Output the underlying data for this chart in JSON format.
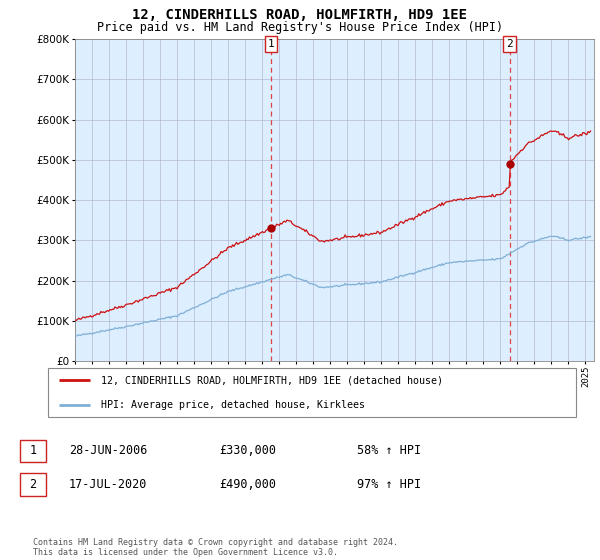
{
  "title": "12, CINDERHILLS ROAD, HOLMFIRTH, HD9 1EE",
  "subtitle": "Price paid vs. HM Land Registry's House Price Index (HPI)",
  "legend_line1": "12, CINDERHILLS ROAD, HOLMFIRTH, HD9 1EE (detached house)",
  "legend_line2": "HPI: Average price, detached house, Kirklees",
  "table_rows": [
    {
      "num": "1",
      "date": "28-JUN-2006",
      "price": "£330,000",
      "change": "58% ↑ HPI"
    },
    {
      "num": "2",
      "date": "17-JUL-2020",
      "price": "£490,000",
      "change": "97% ↑ HPI"
    }
  ],
  "footnote": "Contains HM Land Registry data © Crown copyright and database right 2024.\nThis data is licensed under the Open Government Licence v3.0.",
  "sale1_x": 2006.5,
  "sale1_y": 330000,
  "sale2_x": 2020.54,
  "sale2_y": 490000,
  "vline1_x": 2006.5,
  "vline2_x": 2020.54,
  "ylim": [
    0,
    800000
  ],
  "xlim_start": 1995.0,
  "xlim_end": 2025.5,
  "hpi_color": "#7fafd4",
  "property_color": "#cc1111",
  "vline_color": "#dd4444",
  "dot_color": "#aa0000",
  "background_color": "#ffffff",
  "chart_bg_color": "#ddeeff",
  "grid_color": "#aaaacc"
}
